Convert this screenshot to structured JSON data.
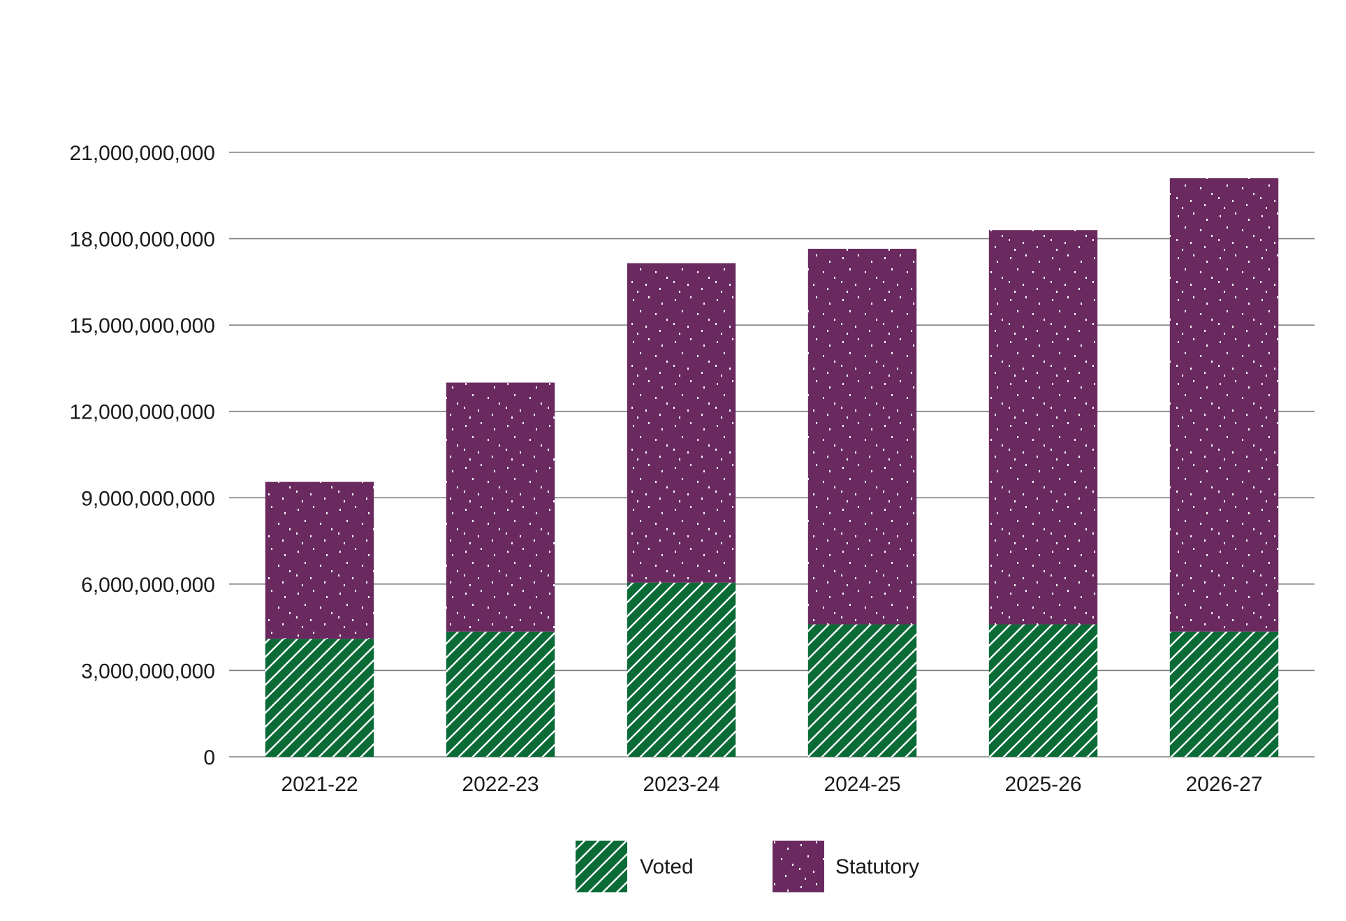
{
  "chart_data": {
    "type": "bar",
    "stacked": true,
    "title": "",
    "xlabel": "",
    "ylabel": "",
    "categories": [
      "2021-22",
      "2022-23",
      "2023-24",
      "2024-25",
      "2025-26",
      "2026-27"
    ],
    "series": [
      {
        "name": "Voted",
        "color": "#0b6b37",
        "pattern": "diagonal-hatch",
        "values": [
          4100000000,
          4350000000,
          6050000000,
          4600000000,
          4600000000,
          4350000000
        ]
      },
      {
        "name": "Statutory",
        "color": "#6a2a60",
        "pattern": "dots",
        "values": [
          5450000000,
          8650000000,
          11100000000,
          13050000000,
          13700000000,
          15750000000
        ]
      }
    ],
    "ylim": [
      0,
      21000000000
    ],
    "yticks": [
      0,
      3000000000,
      6000000000,
      9000000000,
      12000000000,
      15000000000,
      18000000000,
      21000000000
    ],
    "ytick_labels": [
      "0",
      "3,000,000,000",
      "6,000,000,000",
      "9,000,000,000",
      "12,000,000,000",
      "15,000,000,000",
      "18,000,000,000",
      "21,000,000,000"
    ],
    "grid": true,
    "legend": {
      "position": "bottom-center",
      "items": [
        "Voted",
        "Statutory"
      ]
    }
  }
}
